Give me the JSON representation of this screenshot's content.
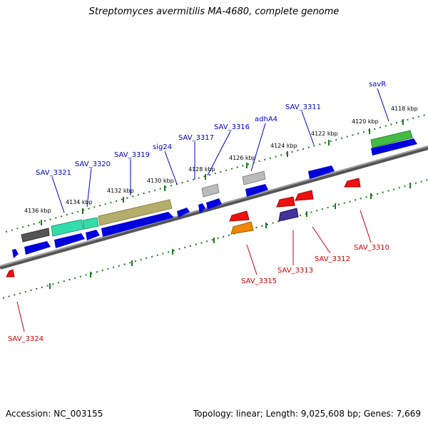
{
  "title": "Streptomyces avermitilis MA-4680, complete genome",
  "footer": {
    "accession": "Accession: NC_003155",
    "stats": "Topology: linear; Length: 9,025,608 bp; Genes: 7,669"
  },
  "colors": {
    "forward_label": "#0000cc",
    "reverse_label": "#cc0000",
    "scale_ticks": "#1a7a1a",
    "backbone": "#808080"
  },
  "scale_labels": [
    "4118 kbp",
    "4120 kbp",
    "4122 kbp",
    "4124 kbp",
    "4126 kbp",
    "4128 kbp",
    "4130 kbp",
    "4132 kbp",
    "4134 kbp",
    "4136 kbp"
  ],
  "forward_gene_labels": [
    "savR",
    "SAV_3311",
    "adhA4",
    "SAV_3316",
    "SAV_3317",
    "sig24",
    "SAV_3319",
    "SAV_3320",
    "SAV_3321"
  ],
  "reverse_gene_labels": [
    "SAV_3310",
    "SAV_3312",
    "SAV_3313",
    "SAV_3315",
    "SAV_3324"
  ]
}
